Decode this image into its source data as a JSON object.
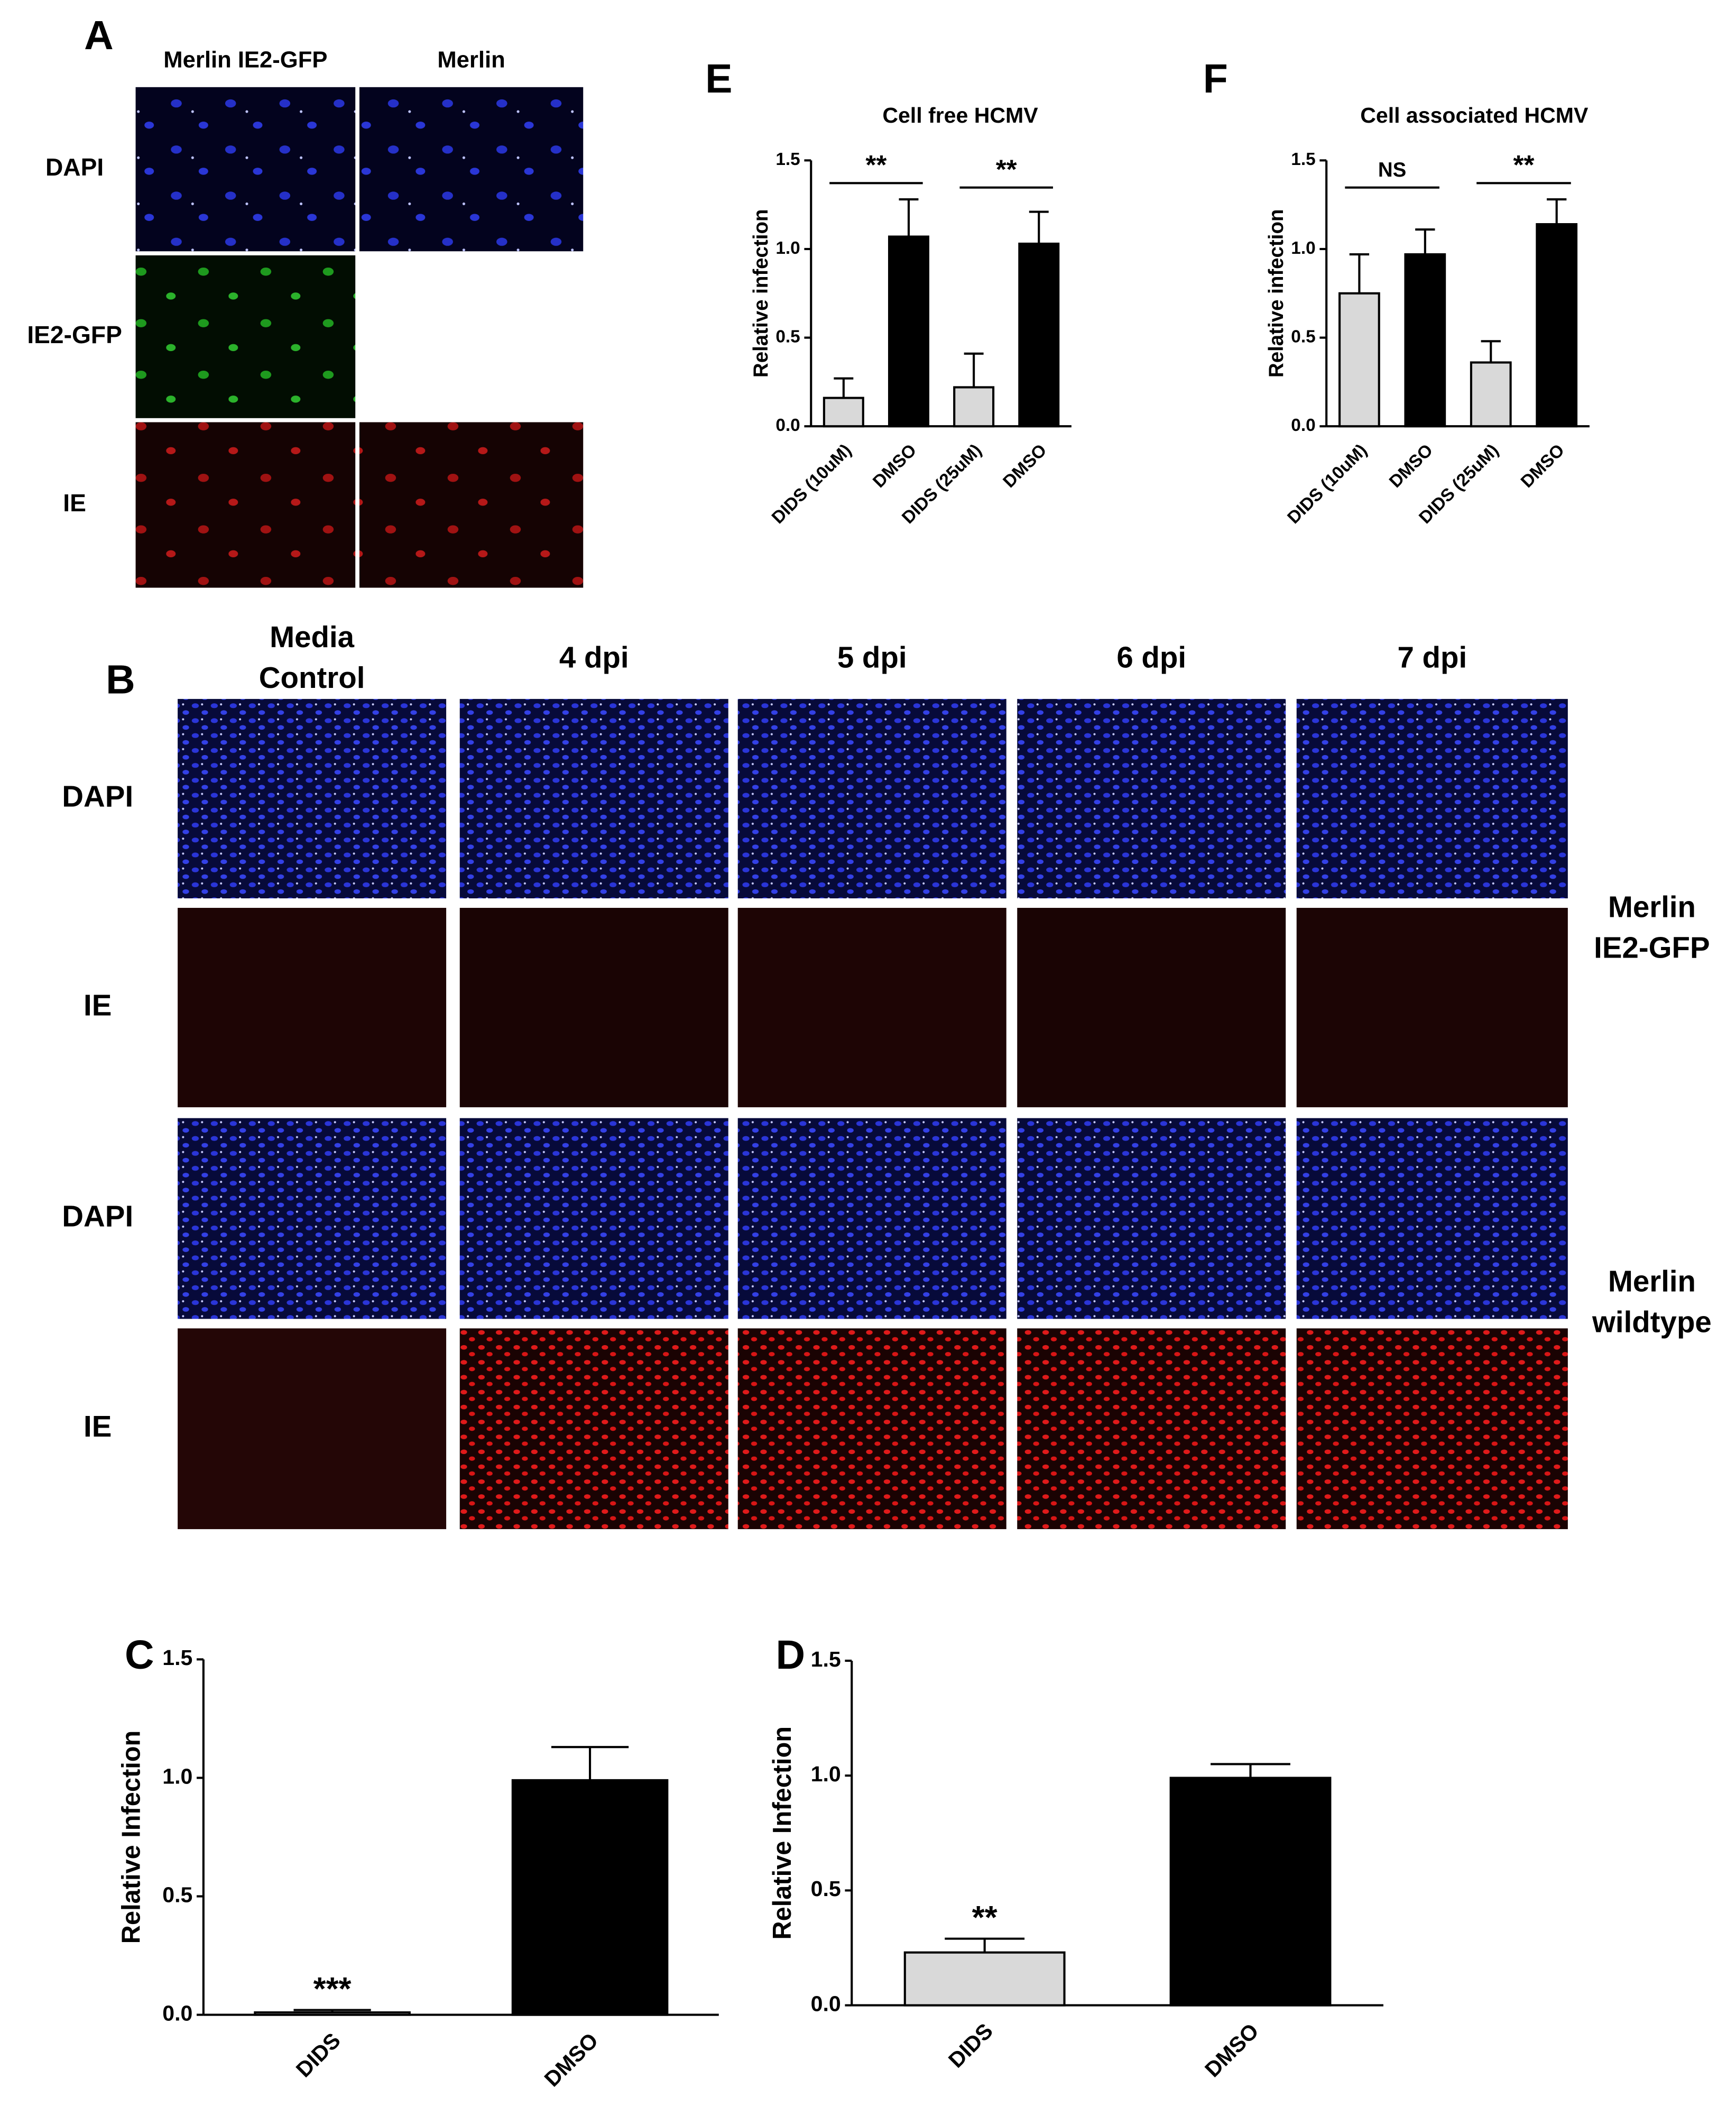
{
  "panel_a": {
    "label": "A",
    "column_headers": [
      "Merlin IE2-GFP",
      "Merlin"
    ],
    "row_labels": [
      "DAPI",
      "IE2-GFP",
      "IE"
    ]
  },
  "panel_b": {
    "label": "B",
    "column_headers": [
      "Media Control",
      "4 dpi",
      "5 dpi",
      "6 dpi",
      "7 dpi"
    ],
    "row_labels": [
      "DAPI",
      "IE",
      "DAPI",
      "IE"
    ],
    "group_labels": [
      "Merlin IE2-GFP",
      "Merlin wildtype"
    ]
  },
  "chart_data": [
    {
      "type": "bar",
      "panel": "E",
      "title": "Cell free HCMV",
      "y_label": "Relative infection",
      "categories": [
        "DIDS (10uM)",
        "DMSO",
        "DIDS (25uM)",
        "DMSO"
      ],
      "values": [
        0.16,
        1.07,
        0.22,
        1.03
      ],
      "errors": [
        0.11,
        0.21,
        0.19,
        0.18
      ],
      "colors": [
        "#d9d9d9",
        "#000000",
        "#d9d9d9",
        "#000000"
      ],
      "pair_annotations": [
        "**",
        "**"
      ],
      "ylim": [
        0,
        1.5
      ],
      "yticks": [
        {
          "value": 0,
          "label": "0.0"
        },
        0.5,
        {
          "value": 1,
          "label": "1.0"
        },
        1.5
      ]
    },
    {
      "type": "bar",
      "panel": "F",
      "title": "Cell associated HCMV",
      "y_label": "Relative infection",
      "categories": [
        "DIDS (10uM)",
        "DMSO",
        "DIDS (25uM)",
        "DMSO"
      ],
      "values": [
        0.75,
        0.97,
        0.36,
        1.14
      ],
      "errors": [
        0.22,
        0.14,
        0.12,
        0.14
      ],
      "colors": [
        "#d9d9d9",
        "#000000",
        "#d9d9d9",
        "#000000"
      ],
      "pair_annotations": [
        "NS",
        "**"
      ],
      "ylim": [
        0,
        1.5
      ],
      "yticks": [
        {
          "value": 0,
          "label": "0.0"
        },
        0.5,
        {
          "value": 1,
          "label": "1.0"
        },
        1.5
      ]
    },
    {
      "type": "bar",
      "panel": "C",
      "y_label": "Relative Infection",
      "categories": [
        "DIDS",
        "DMSO"
      ],
      "values": [
        0.01,
        0.99
      ],
      "errors": [
        0.01,
        0.14
      ],
      "colors": [
        "#d9d9d9",
        "#000000"
      ],
      "value_annotations": [
        "***",
        null
      ],
      "ylim": [
        0,
        1.5
      ],
      "yticks": [
        {
          "value": 0,
          "label": "0.0"
        },
        0.5,
        {
          "value": 1,
          "label": "1.0"
        },
        1.5
      ]
    },
    {
      "type": "bar",
      "panel": "D",
      "y_label": "Relative Infection",
      "categories": [
        "DIDS",
        "DMSO"
      ],
      "values": [
        0.23,
        0.99
      ],
      "errors": [
        0.06,
        0.06
      ],
      "colors": [
        "#d9d9d9",
        "#000000"
      ],
      "value_annotations": [
        "**",
        null
      ],
      "ylim": [
        0,
        1.5
      ],
      "yticks": [
        {
          "value": 0,
          "label": "0.0"
        },
        0.5,
        {
          "value": 1,
          "label": "1.0"
        },
        1.5
      ]
    }
  ]
}
